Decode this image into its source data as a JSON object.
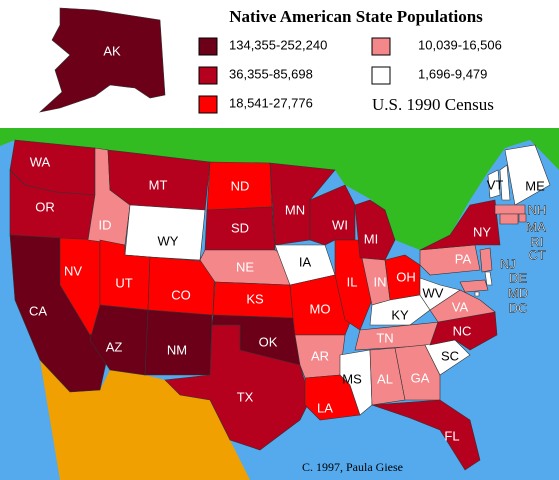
{
  "title": "Native American State Populations",
  "legend": [
    {
      "label": "134,355-252,240",
      "color": "#6b0018"
    },
    {
      "label": "36,355-85,698",
      "color": "#b5001e"
    },
    {
      "label": "18,541-27,776",
      "color": "#ff0000"
    },
    {
      "label": "10,039-16,506",
      "color": "#f4878a"
    },
    {
      "label": "1,696-9,479",
      "color": "#ffffff"
    }
  ],
  "source": "U.S. 1990 Census",
  "credit": "C. 1997, Paula Giese",
  "states": [
    {
      "abbr": "AK",
      "color": "#6b0018"
    },
    {
      "abbr": "WA",
      "color": "#b5001e"
    },
    {
      "abbr": "OR",
      "color": "#b5001e"
    },
    {
      "abbr": "CA",
      "color": "#6b0018"
    },
    {
      "abbr": "NV",
      "color": "#ff0000"
    },
    {
      "abbr": "ID",
      "color": "#f4878a"
    },
    {
      "abbr": "MT",
      "color": "#b5001e"
    },
    {
      "abbr": "WY",
      "color": "#ffffff"
    },
    {
      "abbr": "UT",
      "color": "#ff0000"
    },
    {
      "abbr": "AZ",
      "color": "#6b0018"
    },
    {
      "abbr": "CO",
      "color": "#ff0000"
    },
    {
      "abbr": "NM",
      "color": "#6b0018"
    },
    {
      "abbr": "ND",
      "color": "#ff0000"
    },
    {
      "abbr": "SD",
      "color": "#b5001e"
    },
    {
      "abbr": "NE",
      "color": "#f4878a"
    },
    {
      "abbr": "KS",
      "color": "#ff0000"
    },
    {
      "abbr": "OK",
      "color": "#6b0018"
    },
    {
      "abbr": "TX",
      "color": "#b5001e"
    },
    {
      "abbr": "MN",
      "color": "#b5001e"
    },
    {
      "abbr": "IA",
      "color": "#ffffff"
    },
    {
      "abbr": "MO",
      "color": "#ff0000"
    },
    {
      "abbr": "AR",
      "color": "#f4878a"
    },
    {
      "abbr": "LA",
      "color": "#ff0000"
    },
    {
      "abbr": "WI",
      "color": "#b5001e"
    },
    {
      "abbr": "IL",
      "color": "#ff0000"
    },
    {
      "abbr": "MI",
      "color": "#b5001e"
    },
    {
      "abbr": "IN",
      "color": "#f4878a"
    },
    {
      "abbr": "OH",
      "color": "#ff0000"
    },
    {
      "abbr": "KY",
      "color": "#ffffff"
    },
    {
      "abbr": "TN",
      "color": "#f4878a"
    },
    {
      "abbr": "MS",
      "color": "#ffffff"
    },
    {
      "abbr": "AL",
      "color": "#f4878a"
    },
    {
      "abbr": "GA",
      "color": "#f4878a"
    },
    {
      "abbr": "FL",
      "color": "#b5001e"
    },
    {
      "abbr": "SC",
      "color": "#ffffff"
    },
    {
      "abbr": "NC",
      "color": "#b5001e"
    },
    {
      "abbr": "VA",
      "color": "#f4878a"
    },
    {
      "abbr": "WV",
      "color": "#ffffff"
    },
    {
      "abbr": "PA",
      "color": "#f4878a"
    },
    {
      "abbr": "NY",
      "color": "#b5001e"
    },
    {
      "abbr": "NJ",
      "color": "#f4878a"
    },
    {
      "abbr": "VT",
      "color": "#ffffff"
    },
    {
      "abbr": "NH",
      "color": "#ffffff"
    },
    {
      "abbr": "ME",
      "color": "#ffffff"
    },
    {
      "abbr": "MA",
      "color": "#f4878a"
    },
    {
      "abbr": "RI",
      "color": "#f4878a"
    },
    {
      "abbr": "CT",
      "color": "#f4878a"
    },
    {
      "abbr": "DE",
      "color": "#ffffff"
    },
    {
      "abbr": "MD",
      "color": "#f4878a"
    },
    {
      "abbr": "DC",
      "color": "#ffffff"
    }
  ]
}
